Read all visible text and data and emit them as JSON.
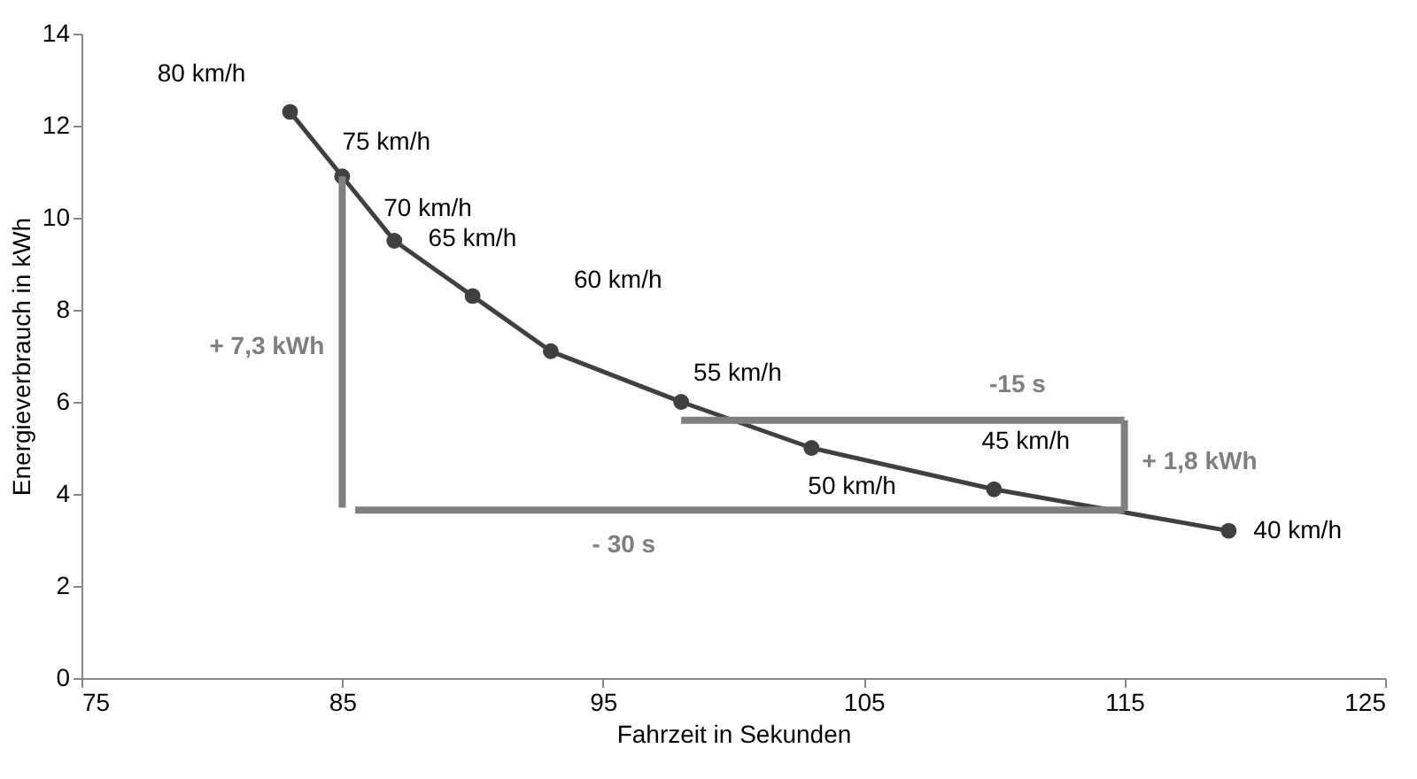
{
  "chart_data": {
    "type": "line",
    "xlabel": "Fahrzeit in Sekunden",
    "ylabel": "Energieverbrauch in kWh",
    "xlim": [
      75,
      125
    ],
    "xticks": [
      75,
      85,
      95,
      105,
      115,
      125
    ],
    "ylim": [
      0,
      14
    ],
    "yticks": [
      0,
      2,
      4,
      6,
      8,
      10,
      12,
      14
    ],
    "grid": false,
    "series": [
      {
        "type": "line",
        "color": "#404040",
        "marker": "circle",
        "x": [
          83,
          85,
          87,
          90,
          93,
          98,
          103,
          110,
          119
        ],
        "values": [
          12.3,
          10.9,
          9.5,
          8.3,
          7.1,
          6.0,
          5.0,
          4.1,
          3.2
        ]
      },
      {
        "type": "line",
        "color": "#7f7f7f",
        "marker": "none",
        "x": [
          85,
          85
        ],
        "values": [
          3.7,
          10.9
        ]
      },
      {
        "type": "line",
        "color": "#7f7f7f",
        "marker": "none",
        "x": [
          115,
          85.5
        ],
        "values": [
          3.65,
          3.65
        ]
      },
      {
        "type": "line",
        "color": "#7f7f7f",
        "marker": "none",
        "x": [
          115,
          115
        ],
        "values": [
          3.65,
          5.6
        ]
      },
      {
        "type": "line",
        "color": "#7f7f7f",
        "marker": "none",
        "x": [
          115,
          98
        ],
        "values": [
          5.6,
          5.6
        ]
      }
    ],
    "annotations": [
      {
        "text": "80 km/h",
        "x": 83,
        "y": 12.3
      },
      {
        "text": "75 km/h",
        "x": 85,
        "y": 10.9
      },
      {
        "text": "70 km/h",
        "x": 87,
        "y": 9.5
      },
      {
        "text": "65 km/h",
        "x": 90,
        "y": 8.3
      },
      {
        "text": "60 km/h",
        "x": 93,
        "y": 7.1
      },
      {
        "text": "55 km/h",
        "x": 98,
        "y": 6.0
      },
      {
        "text": "50 km/h",
        "x": 103,
        "y": 5.0
      },
      {
        "text": "45 km/h",
        "x": 110,
        "y": 4.1
      },
      {
        "text": "40 km/h",
        "x": 119,
        "y": 3.2
      },
      {
        "text": "+ 7,3 kWh",
        "x": 85,
        "y": 7.2
      },
      {
        "text": "-15 s",
        "x": 110.9,
        "y": 5.6
      },
      {
        "text": "+ 1,8 kWh",
        "x": 115,
        "y": 4.7
      },
      {
        "text": "- 30 s",
        "x": 95.8,
        "y": 3.65
      }
    ]
  }
}
